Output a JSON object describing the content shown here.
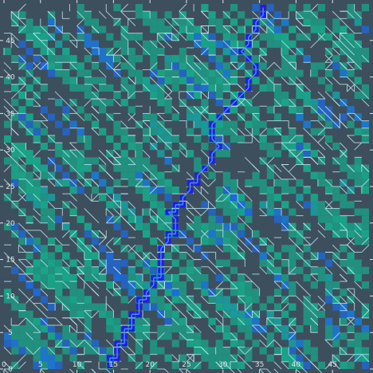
{
  "title": "",
  "colors": {
    "background": "#3d4f5c",
    "maze_line": "#bfe8f2",
    "teal_cell": "#1aa58a",
    "blue_cell": "#1e6ae0",
    "path": "#1a1fe6",
    "path_highlight": "#4f8cff",
    "tick": "#dfe7ea"
  },
  "axes": {
    "x_ticks": [
      "0",
      "5",
      "10",
      "15",
      "20",
      "25",
      "30",
      "35",
      "40",
      "45"
    ],
    "y_ticks": [
      "0",
      "5",
      "10",
      "15",
      "20",
      "25",
      "30",
      "35",
      "40",
      "45"
    ],
    "x_range": [
      0,
      50
    ],
    "y_range": [
      0,
      50
    ]
  },
  "solution_path": [
    [
      14,
      0
    ],
    [
      14,
      1
    ],
    [
      15,
      1
    ],
    [
      15,
      2
    ],
    [
      15,
      3
    ],
    [
      16,
      3
    ],
    [
      16,
      4
    ],
    [
      16,
      5
    ],
    [
      17,
      5
    ],
    [
      17,
      6
    ],
    [
      17,
      7
    ],
    [
      18,
      7
    ],
    [
      18,
      8
    ],
    [
      18,
      9
    ],
    [
      19,
      9
    ],
    [
      19,
      10
    ],
    [
      20,
      11
    ],
    [
      20,
      12
    ],
    [
      21,
      12
    ],
    [
      21,
      13
    ],
    [
      21,
      14
    ],
    [
      21,
      15
    ],
    [
      21,
      16
    ],
    [
      22,
      17
    ],
    [
      22,
      18
    ],
    [
      23,
      18
    ],
    [
      23,
      19
    ],
    [
      23,
      20
    ],
    [
      22,
      21
    ],
    [
      23,
      21
    ],
    [
      23,
      22
    ],
    [
      24,
      22
    ],
    [
      24,
      23
    ],
    [
      25,
      24
    ],
    [
      25,
      25
    ],
    [
      26,
      25
    ],
    [
      26,
      26
    ],
    [
      27,
      27
    ],
    [
      28,
      28
    ],
    [
      28,
      29
    ],
    [
      29,
      30
    ],
    [
      28,
      31
    ],
    [
      28,
      32
    ],
    [
      28,
      33
    ],
    [
      29,
      34
    ],
    [
      30,
      35
    ],
    [
      31,
      36
    ],
    [
      32,
      37
    ],
    [
      33,
      38
    ],
    [
      33,
      39
    ],
    [
      34,
      40
    ],
    [
      34,
      41
    ],
    [
      33,
      42
    ],
    [
      32,
      43
    ],
    [
      33,
      44
    ],
    [
      33,
      45
    ],
    [
      34,
      46
    ],
    [
      34,
      47
    ],
    [
      35,
      48
    ],
    [
      35,
      49
    ]
  ]
}
